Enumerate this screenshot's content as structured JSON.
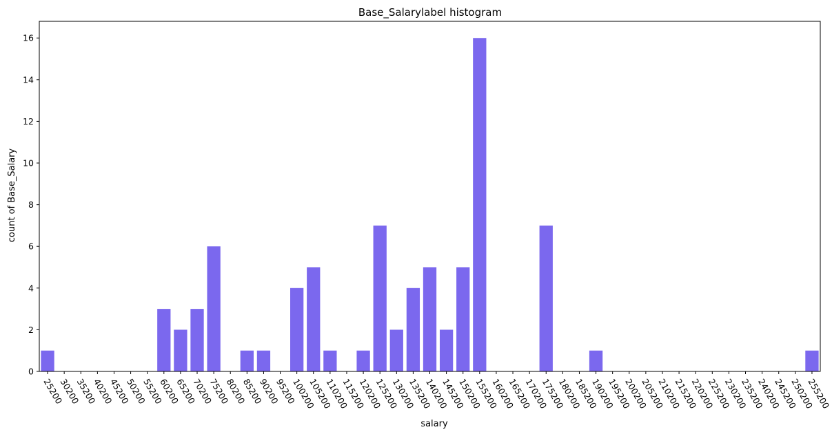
{
  "chart_data": {
    "type": "bar",
    "title": "Base_Salarylabel histogram",
    "xlabel": "salary",
    "ylabel": "count of Base_Salary",
    "ylim": [
      0,
      16.8
    ],
    "yticks": [
      0,
      2,
      4,
      6,
      8,
      10,
      12,
      14,
      16
    ],
    "bar_color": "#7B68EE",
    "grid": false,
    "categories": [
      "25200",
      "30200",
      "35200",
      "40200",
      "45200",
      "50200",
      "55200",
      "60200",
      "65200",
      "70200",
      "75200",
      "80200",
      "85200",
      "90200",
      "95200",
      "100200",
      "105200",
      "110200",
      "115200",
      "120200",
      "125200",
      "130200",
      "135200",
      "140200",
      "145200",
      "150200",
      "155200",
      "160200",
      "165200",
      "170200",
      "175200",
      "180200",
      "185200",
      "190200",
      "195200",
      "200200",
      "205200",
      "210200",
      "215200",
      "220200",
      "225200",
      "230200",
      "235200",
      "240200",
      "245200",
      "250200",
      "255200"
    ],
    "values": [
      1,
      0,
      0,
      0,
      0,
      0,
      0,
      3,
      2,
      3,
      6,
      0,
      1,
      1,
      0,
      4,
      5,
      1,
      0,
      1,
      7,
      2,
      4,
      5,
      2,
      5,
      16,
      0,
      0,
      0,
      7,
      0,
      0,
      1,
      0,
      0,
      0,
      0,
      0,
      0,
      0,
      0,
      0,
      0,
      0,
      0,
      1
    ]
  }
}
